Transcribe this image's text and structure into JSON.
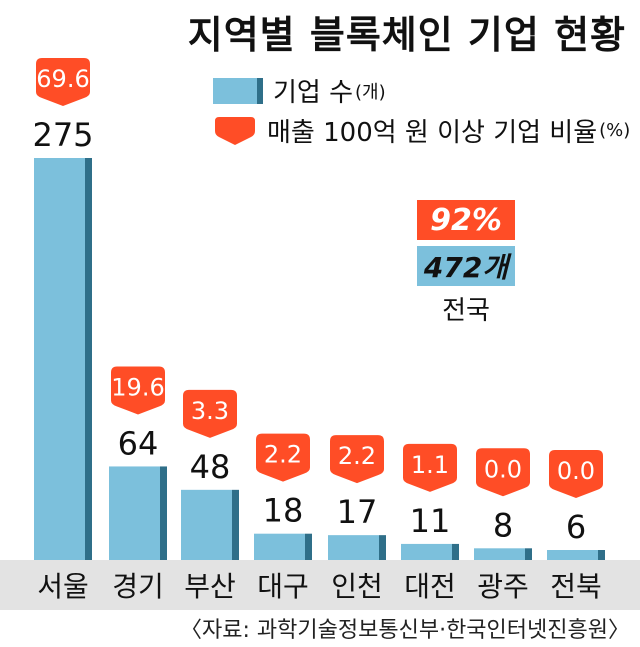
{
  "title": "지역별 블록체인 기업 현황",
  "legend": {
    "count_label": "기업 수",
    "count_unit": "(개)",
    "ratio_label": "매출 100억 원 이상 기업 비율",
    "ratio_unit": "(%)"
  },
  "national": {
    "ratio": "92%",
    "count": "472개",
    "label": "전국"
  },
  "source": "〈자료: 과학기술정보통신부·한국인터넷진흥원〉",
  "colors": {
    "bar": "#7cc0dc",
    "bar_edge": "#2f6f89",
    "pin": "#ff4d26",
    "ground": "#e3e3e3"
  },
  "chart_data": {
    "type": "bar",
    "categories": [
      "서울",
      "경기",
      "부산",
      "대구",
      "인천",
      "대전",
      "광주",
      "전북"
    ],
    "series": [
      {
        "name": "기업 수",
        "values": [
          275,
          64,
          48,
          18,
          17,
          11,
          8,
          6
        ]
      },
      {
        "name": "매출 100억 원 이상 기업 비율",
        "values": [
          69.6,
          19.6,
          3.3,
          2.2,
          2.2,
          1.1,
          0.0,
          0.0
        ]
      }
    ],
    "value_labels": [
      "275",
      "64",
      "48",
      "18",
      "17",
      "11",
      "8",
      "6"
    ],
    "ratio_labels": [
      "69.6",
      "19.6",
      "3.3",
      "2.2",
      "2.2",
      "1.1",
      "0.0",
      "0.0"
    ],
    "title": "지역별 블록체인 기업 현황",
    "xlabel": "",
    "ylabel": "",
    "ylim": [
      0,
      275
    ]
  }
}
